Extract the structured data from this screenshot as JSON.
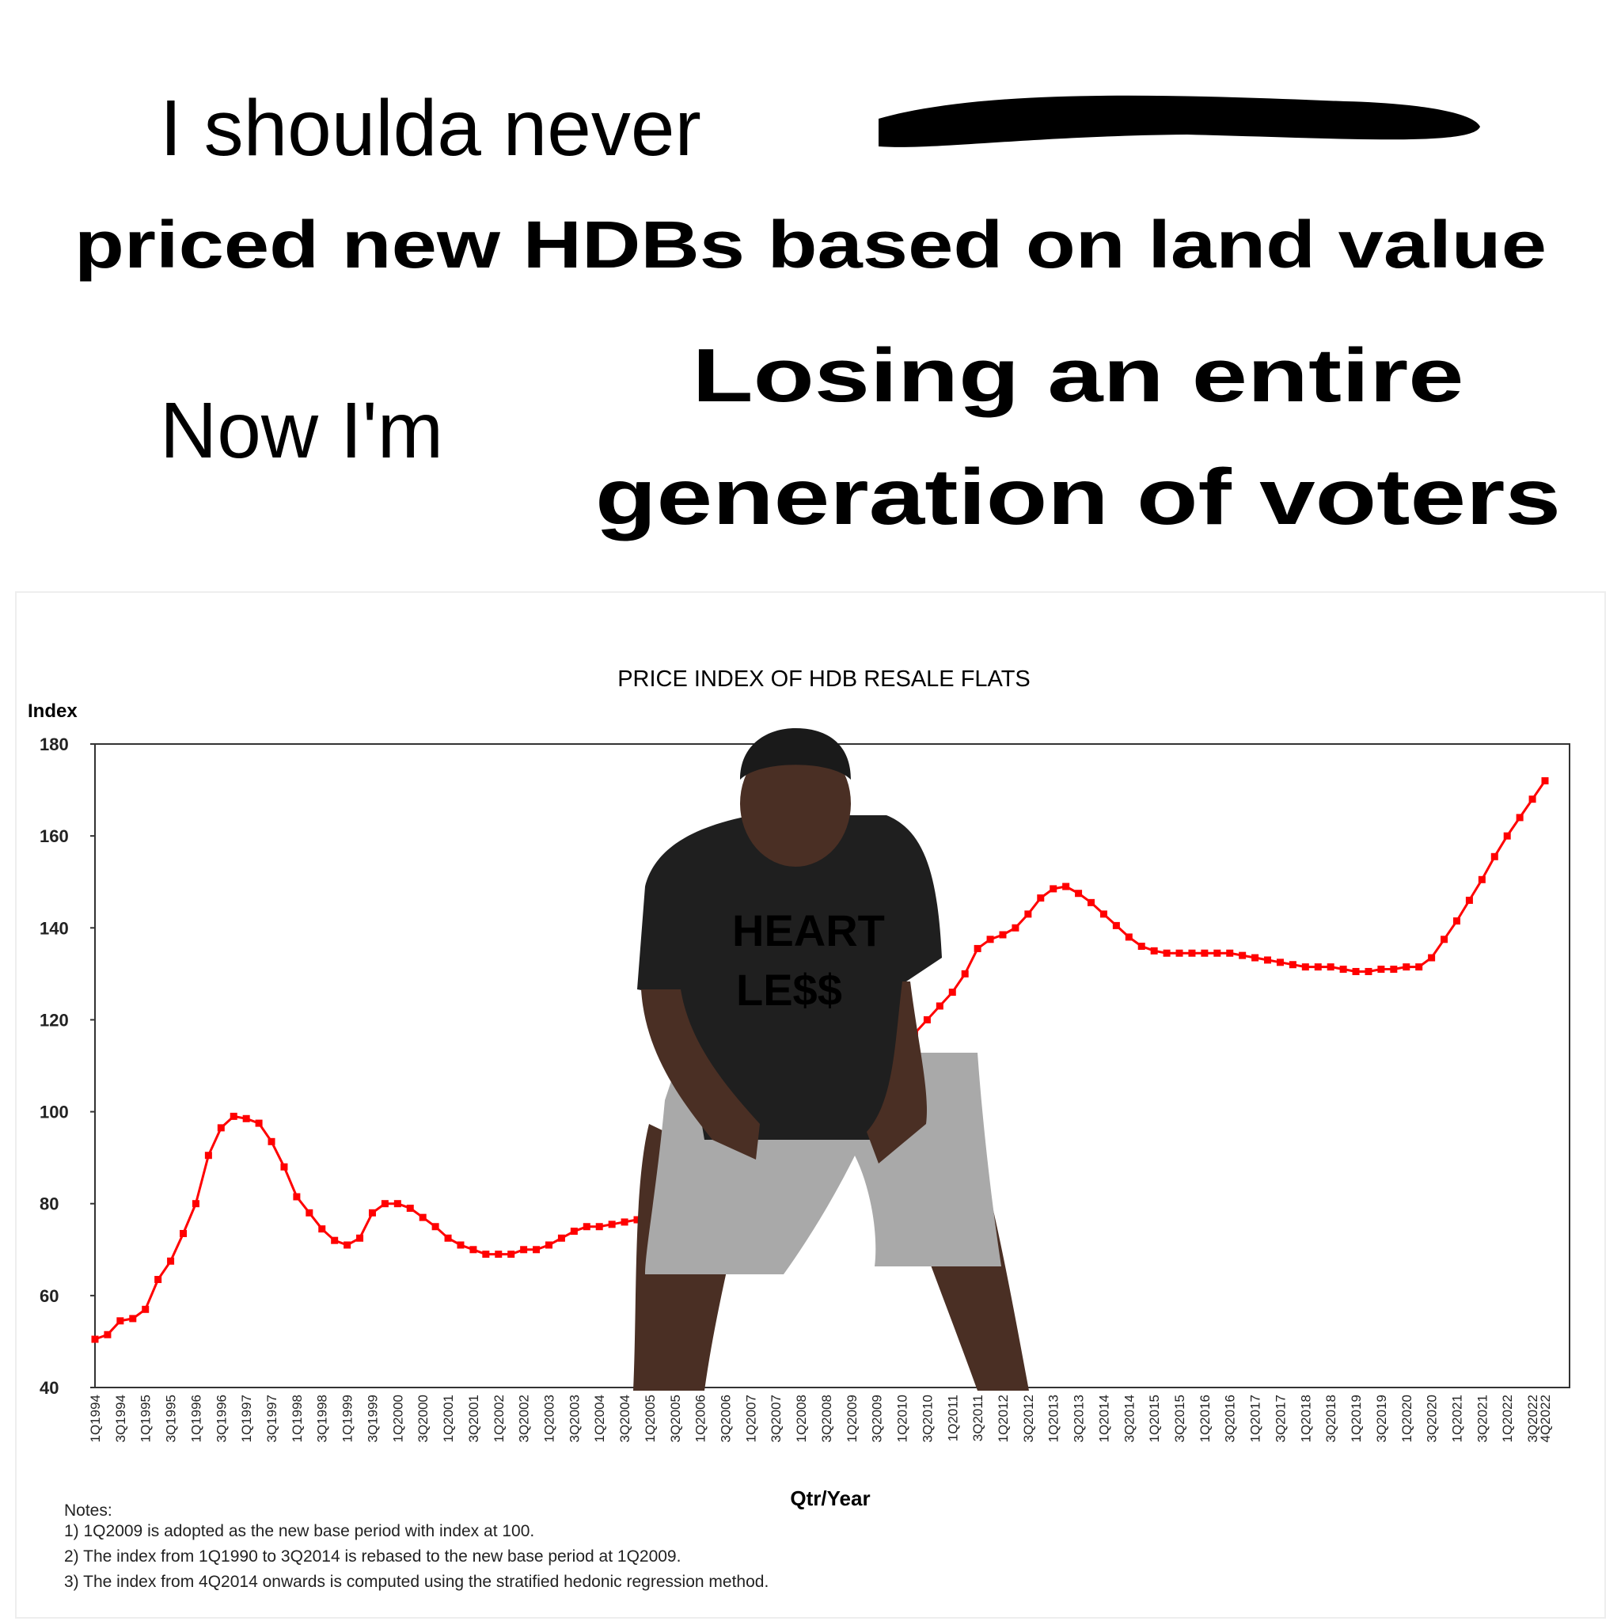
{
  "meme": {
    "line1": "I shoulda never",
    "line2": "priced new HDBs based on land value",
    "line3": "Now I'm",
    "line4a": "Losing an entire",
    "line4b": "generation of voters"
  },
  "chart_data": {
    "type": "line",
    "title": "PRICE INDEX OF HDB RESALE FLATS",
    "y_label": "Index",
    "x_label": "Qtr/Year",
    "categories": [
      "1Q1994",
      null,
      "3Q1994",
      null,
      "1Q1995",
      null,
      "3Q1995",
      null,
      "1Q1996",
      null,
      "3Q1996",
      null,
      "1Q1997",
      null,
      "3Q1997",
      null,
      "1Q1998",
      null,
      "3Q1998",
      null,
      "1Q1999",
      null,
      "3Q1999",
      null,
      "1Q2000",
      null,
      "3Q2000",
      null,
      "1Q2001",
      null,
      "3Q2001",
      null,
      "1Q2002",
      null,
      "3Q2002",
      null,
      "1Q2003",
      null,
      "3Q2003",
      null,
      "1Q2004",
      null,
      "3Q2004",
      null,
      "1Q2005",
      null,
      "3Q2005",
      null,
      "1Q2006",
      null,
      "3Q2006",
      null,
      "1Q2007",
      null,
      "3Q2007",
      null,
      "1Q2008",
      null,
      "3Q2008",
      null,
      "1Q2009",
      null,
      "3Q2009",
      null,
      "1Q2010",
      null,
      "3Q2010",
      null,
      "1Q2011",
      null,
      "3Q2011",
      null,
      "1Q2012",
      null,
      "3Q2012",
      null,
      "1Q2013",
      null,
      "3Q2013",
      null,
      "1Q2014",
      null,
      "3Q2014",
      null,
      "1Q2015",
      null,
      "3Q2015",
      null,
      "1Q2016",
      null,
      "3Q2016",
      null,
      "1Q2017",
      null,
      "3Q2017",
      null,
      "1Q2018",
      null,
      "3Q2018",
      null,
      "1Q2019",
      null,
      "3Q2019",
      null,
      "1Q2020",
      null,
      "3Q2020",
      null,
      "1Q2021",
      null,
      "3Q2021",
      null,
      "1Q2022",
      null,
      "3Q2022",
      "4Q2022"
    ],
    "series": [
      {
        "name": "Price index",
        "color": "#ff0000",
        "values": [
          50.5,
          51.5,
          54.5,
          55,
          57,
          63.5,
          67.5,
          73.5,
          80,
          90.5,
          96.5,
          99,
          98.5,
          97.5,
          93.5,
          88,
          81.5,
          78,
          74.5,
          72,
          71,
          72.5,
          78,
          80,
          80,
          79,
          77,
          75,
          72.5,
          71,
          70,
          69,
          69,
          69,
          70,
          70,
          71,
          72.5,
          74,
          75,
          75,
          75.5,
          76,
          76.5,
          77,
          77,
          77.5,
          78,
          78.5,
          79.5,
          80.5,
          81.5,
          82.5,
          85,
          88,
          92,
          95,
          99,
          102,
          103,
          100,
          102,
          106,
          111,
          114,
          117,
          120,
          123,
          126,
          130,
          135.5,
          137.5,
          138.5,
          140,
          143,
          146.5,
          148.5,
          149,
          147.5,
          145.5,
          143,
          140.5,
          138,
          136,
          135,
          134.5,
          134.5,
          134.5,
          134.5,
          134.5,
          134.5,
          134,
          133.5,
          133,
          132.5,
          132,
          131.5,
          131.5,
          131.5,
          131,
          130.5,
          130.5,
          131,
          131,
          131.5,
          131.5,
          133.5,
          137.5,
          141.5,
          146,
          150.5,
          155.5,
          160,
          164,
          168,
          172
        ]
      }
    ],
    "ylim": [
      40,
      180
    ],
    "yticks": [
      40,
      60,
      80,
      100,
      120,
      140,
      160,
      180
    ],
    "notes": [
      "Notes:",
      "1) 1Q2009 is adopted as the new base period with index at 100.",
      "2) The index from 1Q1990 to 3Q2014 is rebased to the new base period at 1Q2009.",
      "3) The index from 4Q2014 onwards is computed using the stratified hedonic regression method."
    ]
  }
}
